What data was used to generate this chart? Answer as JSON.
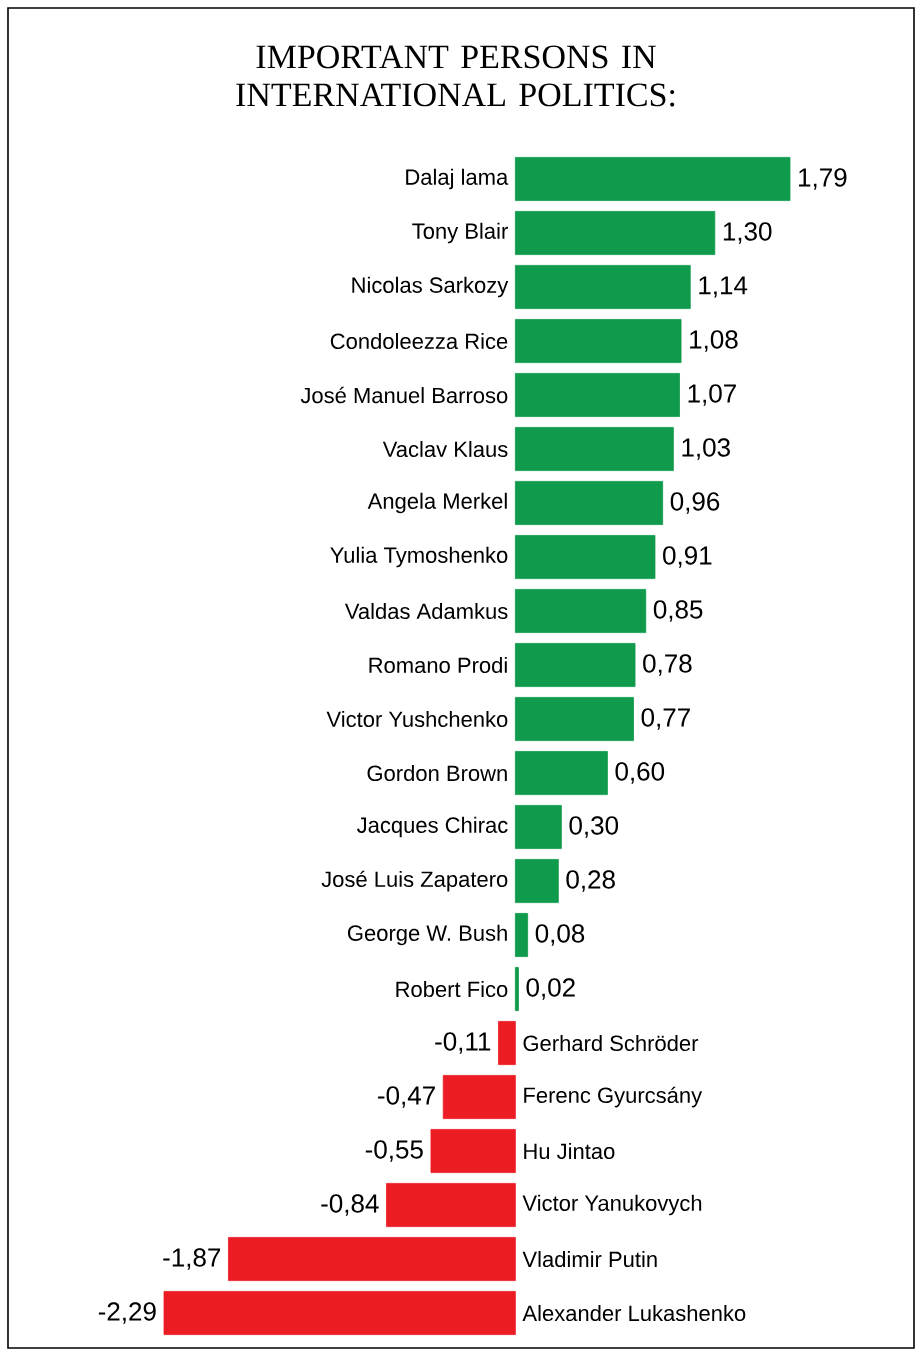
{
  "chart_data": {
    "type": "bar",
    "orientation": "horizontal",
    "title": "IMPORTANT PERSONS IN INTERNATIONAL POLITICS:",
    "categories": [
      "Dalaj lama",
      "Tony Blair",
      "Nicolas Sarkozy",
      "Condoleezza Rice",
      "José Manuel Barroso",
      "Vaclav Klaus",
      "Angela Merkel",
      "Yulia Tymoshenko",
      "Valdas Adamkus",
      "Romano Prodi",
      "Victor Yushchenko",
      "Gordon Brown",
      "Jacques Chirac",
      "José Luis Zapatero",
      "George W. Bush",
      "Robert Fico",
      "Gerhard Schröder",
      "Ferenc Gyurcsány",
      "Hu Jintao",
      "Victor Yanukovych",
      "Vladimir Putin",
      "Alexander Lukashenko"
    ],
    "values": [
      1.79,
      1.3,
      1.14,
      1.08,
      1.07,
      1.03,
      0.96,
      0.91,
      0.85,
      0.78,
      0.77,
      0.6,
      0.3,
      0.28,
      0.08,
      0.02,
      -0.11,
      -0.47,
      -0.55,
      -0.84,
      -1.87,
      -2.29
    ],
    "value_labels": [
      "1,79",
      "1,30",
      "1,14",
      "1,08",
      "1,07",
      "1,03",
      "0,96",
      "0,91",
      "0,85",
      "0,78",
      "0,77",
      "0,60",
      "0,30",
      "0,28",
      "0,08",
      "0,02",
      "-0,11",
      "-0,47",
      "-0,55",
      "-0,84",
      "-1,87",
      "-2,29"
    ],
    "colors": [
      "#109a4c",
      "#109a4c",
      "#109a4c",
      "#109a4c",
      "#109a4c",
      "#109a4c",
      "#109a4c",
      "#109a4c",
      "#109a4c",
      "#109a4c",
      "#109a4c",
      "#109a4c",
      "#109a4c",
      "#109a4c",
      "#109a4c",
      "#109a4c",
      "#ec1c24",
      "#ec1c24",
      "#ec1c24",
      "#ec1c24",
      "#ec1c24",
      "#ec1c24"
    ]
  }
}
